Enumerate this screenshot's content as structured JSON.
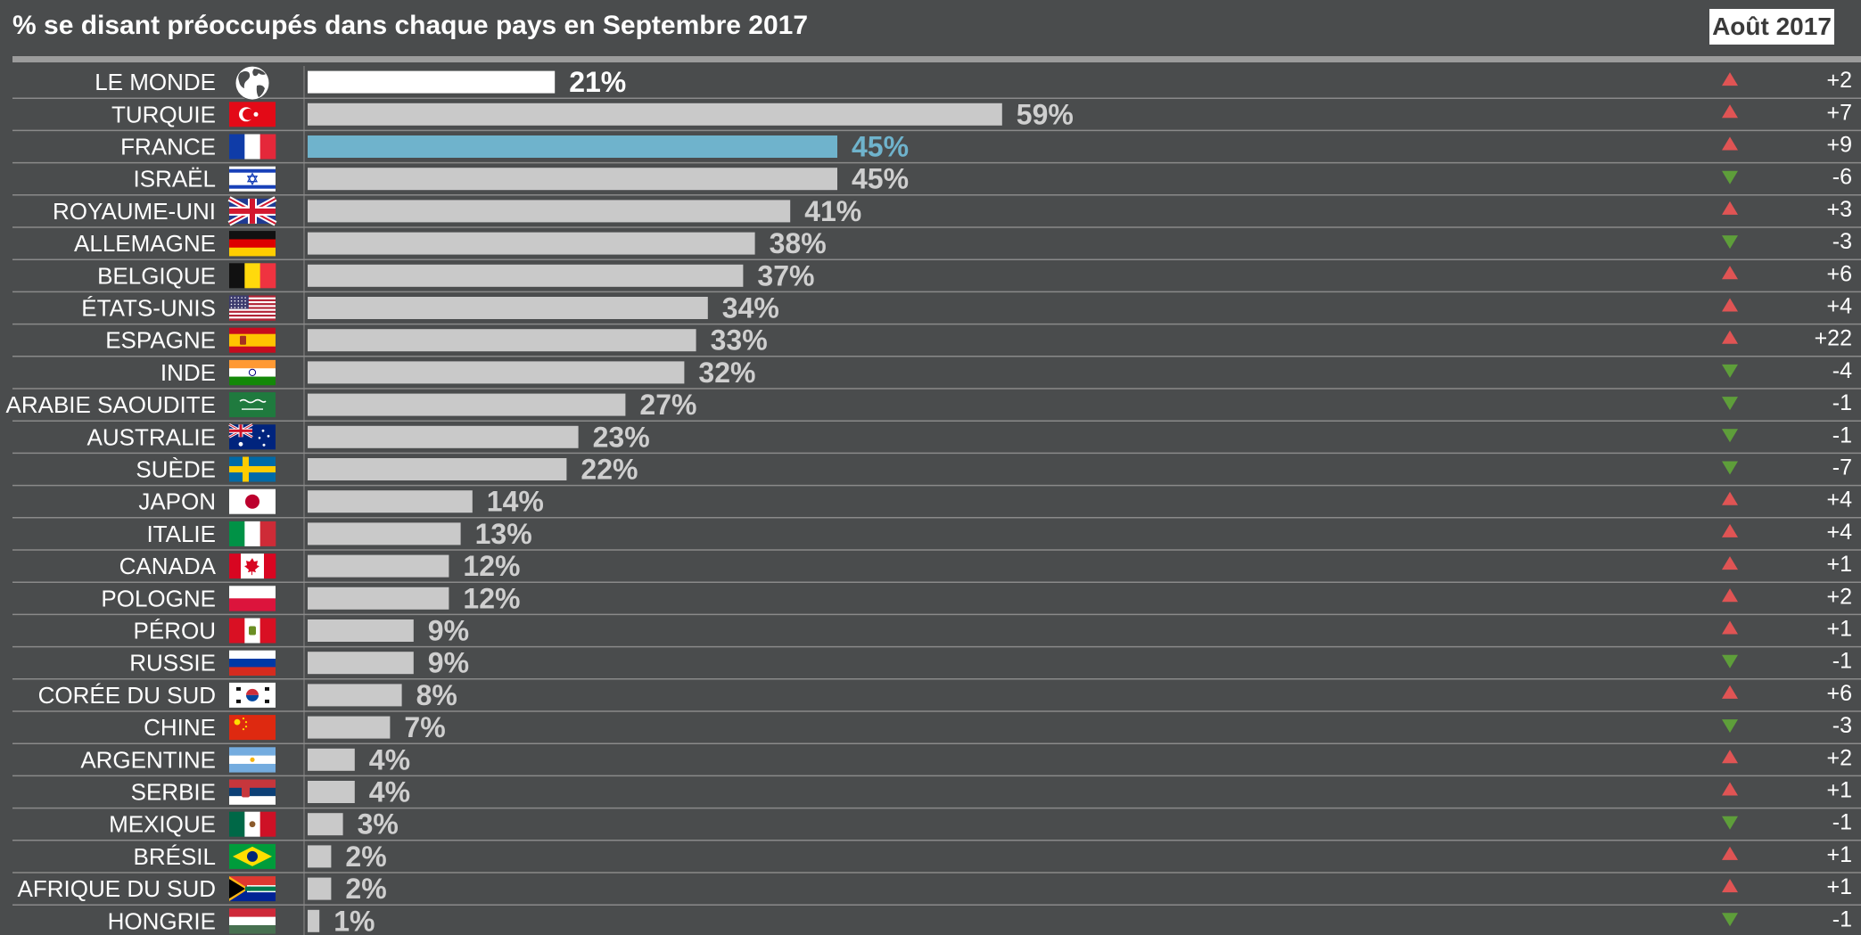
{
  "header": {
    "title": "% se disant préoccupés dans chaque pays en Septembre 2017",
    "comparison_label": "Août 2017"
  },
  "colors": {
    "background": "#4a4c4d",
    "bar_default": "#c9c9c9",
    "bar_world": "#ffffff",
    "bar_highlight": "#6fb3cc",
    "up_arrow": "#e05454",
    "down_arrow": "#5e9e3a",
    "row_rule": "#8a8a8a"
  },
  "chart_data": {
    "type": "bar",
    "orientation": "horizontal",
    "title": "% se disant préoccupés dans chaque pays en Septembre 2017",
    "comparison_label": "Août 2017",
    "unit": "%",
    "categories": [
      "LE MONDE",
      "TURQUIE",
      "FRANCE",
      "ISRAËL",
      "ROYAUME-UNI",
      "ALLEMAGNE",
      "BELGIQUE",
      "ÉTATS-UNIS",
      "ESPAGNE",
      "INDE",
      "ARABIE SAOUDITE",
      "AUSTRALIE",
      "SUÈDE",
      "JAPON",
      "ITALIE",
      "CANADA",
      "POLOGNE",
      "PÉROU",
      "RUSSIE",
      "CORÉE DU SUD",
      "CHINE",
      "ARGENTINE",
      "SERBIE",
      "MEXIQUE",
      "BRÉSIL",
      "AFRIQUE DU SUD",
      "HONGRIE"
    ],
    "values": [
      21,
      59,
      45,
      45,
      41,
      38,
      37,
      34,
      33,
      32,
      27,
      23,
      22,
      14,
      13,
      12,
      12,
      9,
      9,
      8,
      7,
      4,
      4,
      3,
      2,
      2,
      1
    ],
    "value_labels": [
      "21%",
      "59%",
      "45%",
      "45%",
      "41%",
      "38%",
      "37%",
      "34%",
      "33%",
      "32%",
      "27%",
      "23%",
      "22%",
      "14%",
      "13%",
      "12%",
      "12%",
      "9%",
      "9%",
      "8%",
      "7%",
      "4%",
      "4%",
      "3%",
      "2%",
      "2%",
      "1%"
    ],
    "changes": [
      "+2",
      "+7",
      "+9",
      "-6",
      "+3",
      "-3",
      "+6",
      "+4",
      "+22",
      "-4",
      "-1",
      "-1",
      "-7",
      "+4",
      "+4",
      "+1",
      "+2",
      "+1",
      "-1",
      "+6",
      "-3",
      "+2",
      "+1",
      "-1",
      "+1",
      "+1",
      "-1"
    ],
    "flags": [
      "globe-icon",
      "flag-turkey-icon",
      "flag-france-icon",
      "flag-israel-icon",
      "flag-uk-icon",
      "flag-germany-icon",
      "flag-belgium-icon",
      "flag-usa-icon",
      "flag-spain-icon",
      "flag-india-icon",
      "flag-saudi-arabia-icon",
      "flag-australia-icon",
      "flag-sweden-icon",
      "flag-japan-icon",
      "flag-italy-icon",
      "flag-canada-icon",
      "flag-poland-icon",
      "flag-peru-icon",
      "flag-russia-icon",
      "flag-south-korea-icon",
      "flag-china-icon",
      "flag-argentina-icon",
      "flag-serbia-icon",
      "flag-mexico-icon",
      "flag-brazil-icon",
      "flag-south-africa-icon",
      "flag-hungary-icon"
    ],
    "highlight": [
      "FRANCE"
    ],
    "reference": [
      "LE MONDE"
    ],
    "xlim": [
      0,
      65
    ],
    "grid": false
  }
}
